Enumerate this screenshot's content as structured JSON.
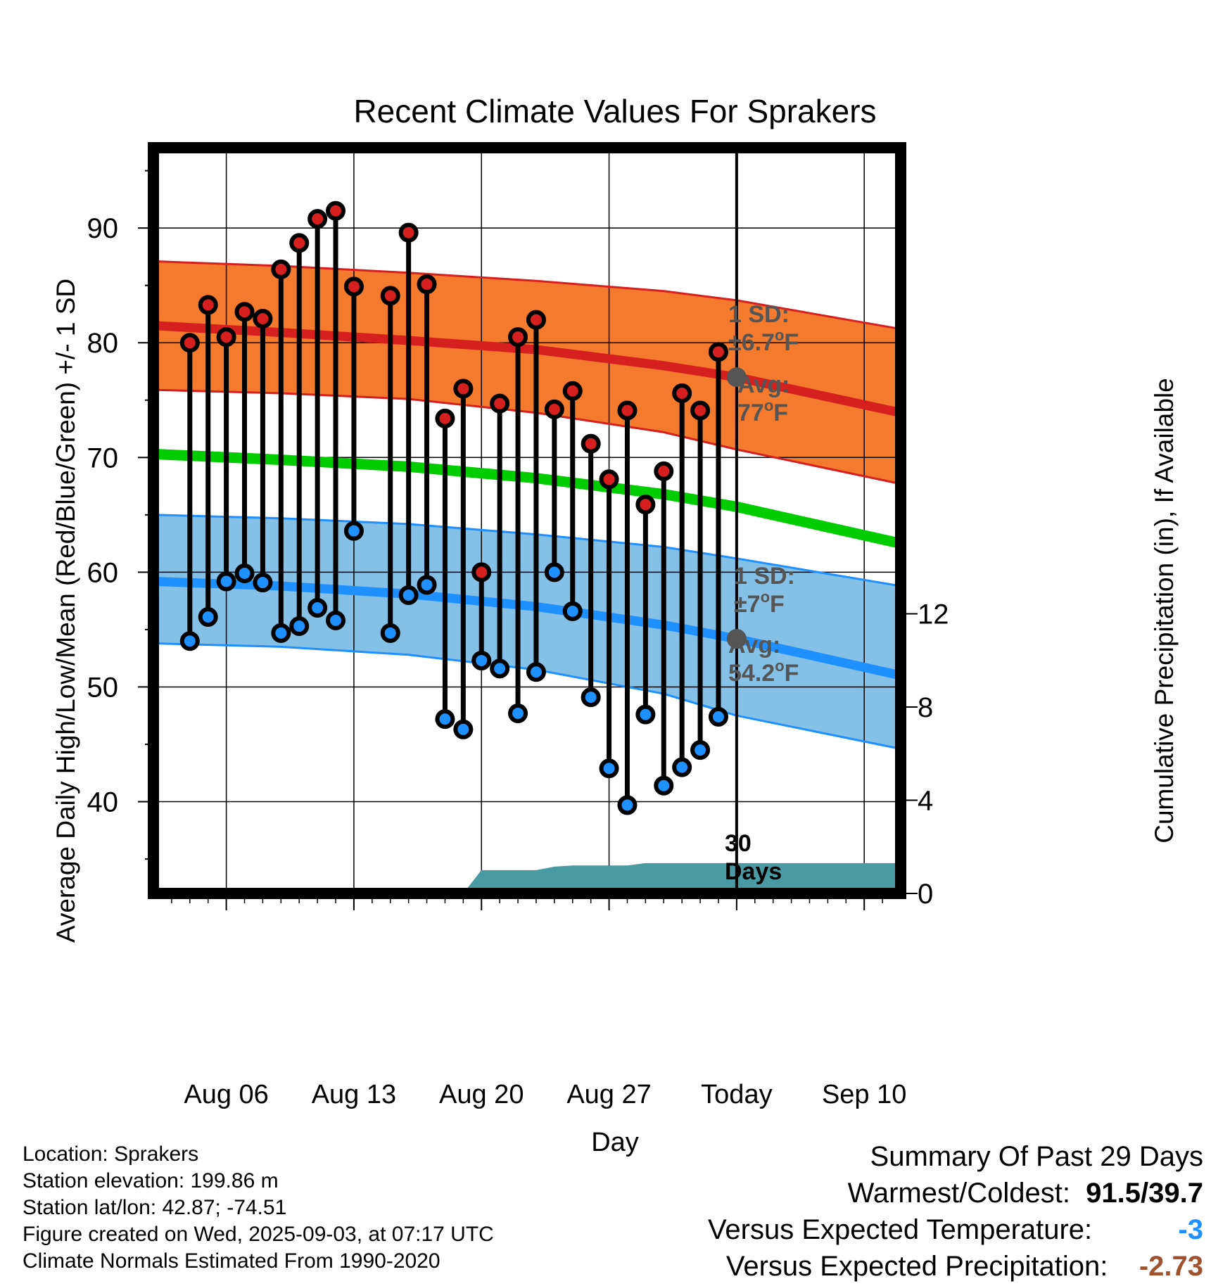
{
  "chart_data": {
    "type": "line",
    "title": "Recent Climate Values For Sprakers",
    "xlabel": "Day",
    "ylabel": "Average Daily High/Low/Mean (Red/Blue/Green) +/- 1 SD",
    "y2label": "Cumulative Precipitation (in), If Available",
    "ylim": [
      32,
      97
    ],
    "y2lim": [
      0,
      32
    ],
    "yticks": [
      40,
      50,
      60,
      70,
      80,
      90
    ],
    "y2ticks": [
      0,
      4,
      8,
      12
    ],
    "xlim": [
      "2025-08-02",
      "2025-09-12"
    ],
    "xticks": [
      {
        "date": "2025-08-06",
        "label": "Aug 06"
      },
      {
        "date": "2025-08-13",
        "label": "Aug 13"
      },
      {
        "date": "2025-08-20",
        "label": "Aug 20"
      },
      {
        "date": "2025-08-27",
        "label": "Aug 27"
      },
      {
        "date": "2025-09-03",
        "label": "Today"
      },
      {
        "date": "2025-09-10",
        "label": "Sep 10"
      }
    ],
    "grid": true,
    "colors": {
      "high": "#d62020",
      "low": "#1e90ff",
      "mean": "#00cc00",
      "high_band": "#f47a2e",
      "low_band": "#85c0e6",
      "precip": "#4a9aa3",
      "avg_marker": "#555555",
      "annotation": "#555555"
    },
    "normals": {
      "high_avg": [
        {
          "x": "2025-08-02",
          "y": 81.5
        },
        {
          "x": "2025-08-09",
          "y": 80.9
        },
        {
          "x": "2025-08-16",
          "y": 80.2
        },
        {
          "x": "2025-08-23",
          "y": 79.4
        },
        {
          "x": "2025-08-30",
          "y": 78.0
        },
        {
          "x": "2025-09-03",
          "y": 77.0
        },
        {
          "x": "2025-09-12",
          "y": 73.9
        }
      ],
      "high_sd_upper": [
        {
          "x": "2025-08-02",
          "y": 87.1
        },
        {
          "x": "2025-08-09",
          "y": 86.7
        },
        {
          "x": "2025-08-16",
          "y": 86.1
        },
        {
          "x": "2025-08-23",
          "y": 85.4
        },
        {
          "x": "2025-08-30",
          "y": 84.5
        },
        {
          "x": "2025-09-03",
          "y": 83.7
        },
        {
          "x": "2025-09-12",
          "y": 81.2
        }
      ],
      "high_sd_lower": [
        {
          "x": "2025-08-02",
          "y": 75.9
        },
        {
          "x": "2025-08-09",
          "y": 75.6
        },
        {
          "x": "2025-08-16",
          "y": 75.1
        },
        {
          "x": "2025-08-23",
          "y": 73.9
        },
        {
          "x": "2025-08-30",
          "y": 72.2
        },
        {
          "x": "2025-09-03",
          "y": 70.7
        },
        {
          "x": "2025-09-12",
          "y": 67.7
        }
      ],
      "mean": [
        {
          "x": "2025-08-02",
          "y": 70.3
        },
        {
          "x": "2025-08-09",
          "y": 69.8
        },
        {
          "x": "2025-08-16",
          "y": 69.2
        },
        {
          "x": "2025-08-23",
          "y": 68.2
        },
        {
          "x": "2025-08-30",
          "y": 66.8
        },
        {
          "x": "2025-09-03",
          "y": 65.7
        },
        {
          "x": "2025-09-12",
          "y": 62.5
        }
      ],
      "low_avg": [
        {
          "x": "2025-08-02",
          "y": 59.2
        },
        {
          "x": "2025-08-09",
          "y": 58.8
        },
        {
          "x": "2025-08-16",
          "y": 58.1
        },
        {
          "x": "2025-08-23",
          "y": 57.0
        },
        {
          "x": "2025-08-30",
          "y": 55.4
        },
        {
          "x": "2025-09-03",
          "y": 54.2
        },
        {
          "x": "2025-09-12",
          "y": 51.0
        }
      ],
      "low_sd_upper": [
        {
          "x": "2025-08-02",
          "y": 65.0
        },
        {
          "x": "2025-08-09",
          "y": 64.7
        },
        {
          "x": "2025-08-16",
          "y": 64.2
        },
        {
          "x": "2025-08-23",
          "y": 63.3
        },
        {
          "x": "2025-08-30",
          "y": 62.2
        },
        {
          "x": "2025-09-03",
          "y": 61.2
        },
        {
          "x": "2025-09-12",
          "y": 58.8
        }
      ],
      "low_sd_lower": [
        {
          "x": "2025-08-02",
          "y": 53.8
        },
        {
          "x": "2025-08-09",
          "y": 53.5
        },
        {
          "x": "2025-08-16",
          "y": 52.8
        },
        {
          "x": "2025-08-23",
          "y": 51.5
        },
        {
          "x": "2025-08-30",
          "y": 49.4
        },
        {
          "x": "2025-09-03",
          "y": 47.5
        },
        {
          "x": "2025-09-12",
          "y": 44.6
        }
      ]
    },
    "series": [
      {
        "name": "High",
        "points": [
          {
            "x": "2025-08-04",
            "y": 80.0
          },
          {
            "x": "2025-08-05",
            "y": 83.3
          },
          {
            "x": "2025-08-06",
            "y": 80.5
          },
          {
            "x": "2025-08-07",
            "y": 82.7
          },
          {
            "x": "2025-08-08",
            "y": 82.1
          },
          {
            "x": "2025-08-09",
            "y": 86.4
          },
          {
            "x": "2025-08-10",
            "y": 88.7
          },
          {
            "x": "2025-08-11",
            "y": 90.8
          },
          {
            "x": "2025-08-12",
            "y": 91.5
          },
          {
            "x": "2025-08-13",
            "y": 84.9
          },
          {
            "x": "2025-08-15",
            "y": 84.1
          },
          {
            "x": "2025-08-16",
            "y": 89.6
          },
          {
            "x": "2025-08-17",
            "y": 85.1
          },
          {
            "x": "2025-08-18",
            "y": 73.4
          },
          {
            "x": "2025-08-19",
            "y": 76.0
          },
          {
            "x": "2025-08-20",
            "y": 60.0
          },
          {
            "x": "2025-08-21",
            "y": 74.7
          },
          {
            "x": "2025-08-22",
            "y": 80.5
          },
          {
            "x": "2025-08-23",
            "y": 82.0
          },
          {
            "x": "2025-08-24",
            "y": 74.2
          },
          {
            "x": "2025-08-25",
            "y": 75.8
          },
          {
            "x": "2025-08-26",
            "y": 71.2
          },
          {
            "x": "2025-08-27",
            "y": 68.1
          },
          {
            "x": "2025-08-28",
            "y": 74.1
          },
          {
            "x": "2025-08-29",
            "y": 65.9
          },
          {
            "x": "2025-08-30",
            "y": 68.8
          },
          {
            "x": "2025-08-31",
            "y": 75.6
          },
          {
            "x": "2025-09-01",
            "y": 74.1
          },
          {
            "x": "2025-09-02",
            "y": 79.2
          }
        ]
      },
      {
        "name": "Low",
        "points": [
          {
            "x": "2025-08-04",
            "y": 54.0
          },
          {
            "x": "2025-08-05",
            "y": 56.1
          },
          {
            "x": "2025-08-06",
            "y": 59.2
          },
          {
            "x": "2025-08-07",
            "y": 59.9
          },
          {
            "x": "2025-08-08",
            "y": 59.1
          },
          {
            "x": "2025-08-09",
            "y": 54.7
          },
          {
            "x": "2025-08-10",
            "y": 55.3
          },
          {
            "x": "2025-08-11",
            "y": 56.9
          },
          {
            "x": "2025-08-12",
            "y": 55.8
          },
          {
            "x": "2025-08-13",
            "y": 63.6
          },
          {
            "x": "2025-08-15",
            "y": 54.7
          },
          {
            "x": "2025-08-16",
            "y": 58.0
          },
          {
            "x": "2025-08-17",
            "y": 58.9
          },
          {
            "x": "2025-08-18",
            "y": 47.2
          },
          {
            "x": "2025-08-19",
            "y": 46.3
          },
          {
            "x": "2025-08-20",
            "y": 52.3
          },
          {
            "x": "2025-08-21",
            "y": 51.6
          },
          {
            "x": "2025-08-22",
            "y": 47.7
          },
          {
            "x": "2025-08-23",
            "y": 51.3
          },
          {
            "x": "2025-08-24",
            "y": 60.0
          },
          {
            "x": "2025-08-25",
            "y": 56.6
          },
          {
            "x": "2025-08-26",
            "y": 49.1
          },
          {
            "x": "2025-08-27",
            "y": 42.9
          },
          {
            "x": "2025-08-28",
            "y": 39.7
          },
          {
            "x": "2025-08-29",
            "y": 47.6
          },
          {
            "x": "2025-08-30",
            "y": 41.4
          },
          {
            "x": "2025-08-31",
            "y": 43.0
          },
          {
            "x": "2025-09-01",
            "y": 44.5
          },
          {
            "x": "2025-09-02",
            "y": 47.4
          }
        ]
      }
    ],
    "precipitation": [
      {
        "x": "2025-08-19",
        "y": 0.0
      },
      {
        "x": "2025-08-20",
        "y": 1.0
      },
      {
        "x": "2025-08-23",
        "y": 1.0
      },
      {
        "x": "2025-08-24",
        "y": 1.15
      },
      {
        "x": "2025-08-25",
        "y": 1.2
      },
      {
        "x": "2025-08-27",
        "y": 1.2
      },
      {
        "x": "2025-08-28",
        "y": 1.2
      },
      {
        "x": "2025-08-29",
        "y": 1.3
      },
      {
        "x": "2025-09-12",
        "y": 1.3
      }
    ],
    "annotations": {
      "high_sd": [
        "1 SD:",
        "±6.7",
        "o",
        "F"
      ],
      "high_avg": [
        "Avg:",
        "77",
        "o",
        "F"
      ],
      "low_sd": [
        "1 SD:",
        "±7",
        "o",
        "F"
      ],
      "low_avg": [
        "Avg:",
        "54.2",
        "o",
        "F"
      ],
      "period": [
        "30",
        "Days"
      ]
    },
    "today": "2025-09-03"
  },
  "info": {
    "location": "Location: Sprakers",
    "elevation": "Station elevation: 199.86 m",
    "latlon": "Station lat/lon: 42.87; -74.51",
    "created": "Figure created on Wed, 2025-09-03, at 07:17 UTC",
    "normals": "Climate Normals Estimated From 1990-2020"
  },
  "summary": {
    "title": "Summary Of Past 29 Days",
    "warm_cold_label": "Warmest/Coldest:",
    "warm_cold_value": "91.5/39.7",
    "temp_label": "Versus Expected Temperature:",
    "temp_value": "-3",
    "temp_color": "#1e90ff",
    "precip_label": "Versus Expected Precipitation:",
    "precip_value": "-2.73",
    "precip_color": "#a0522d"
  }
}
